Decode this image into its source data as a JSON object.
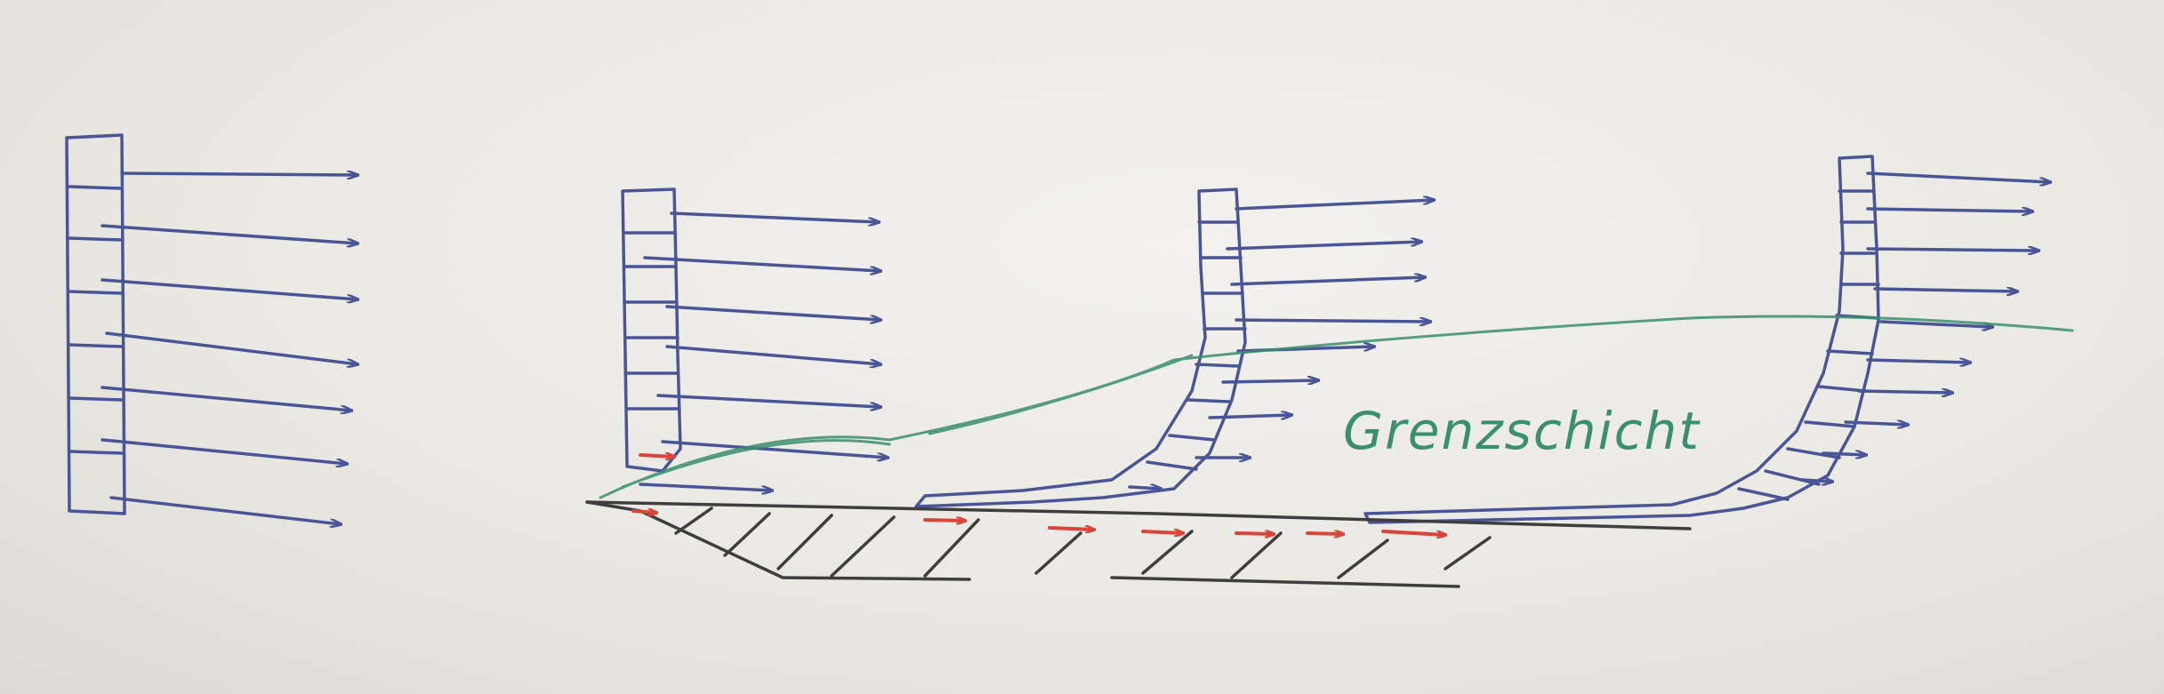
{
  "diagram": {
    "label": "Grenzschicht",
    "colors": {
      "board": "#ebe9e4",
      "profile": "#4a5596",
      "arrow": "#4a5596",
      "wall": "#3e3e3e",
      "wall_velocity": "#d9453a",
      "boundary_layer": "#3a8f6e"
    }
  }
}
